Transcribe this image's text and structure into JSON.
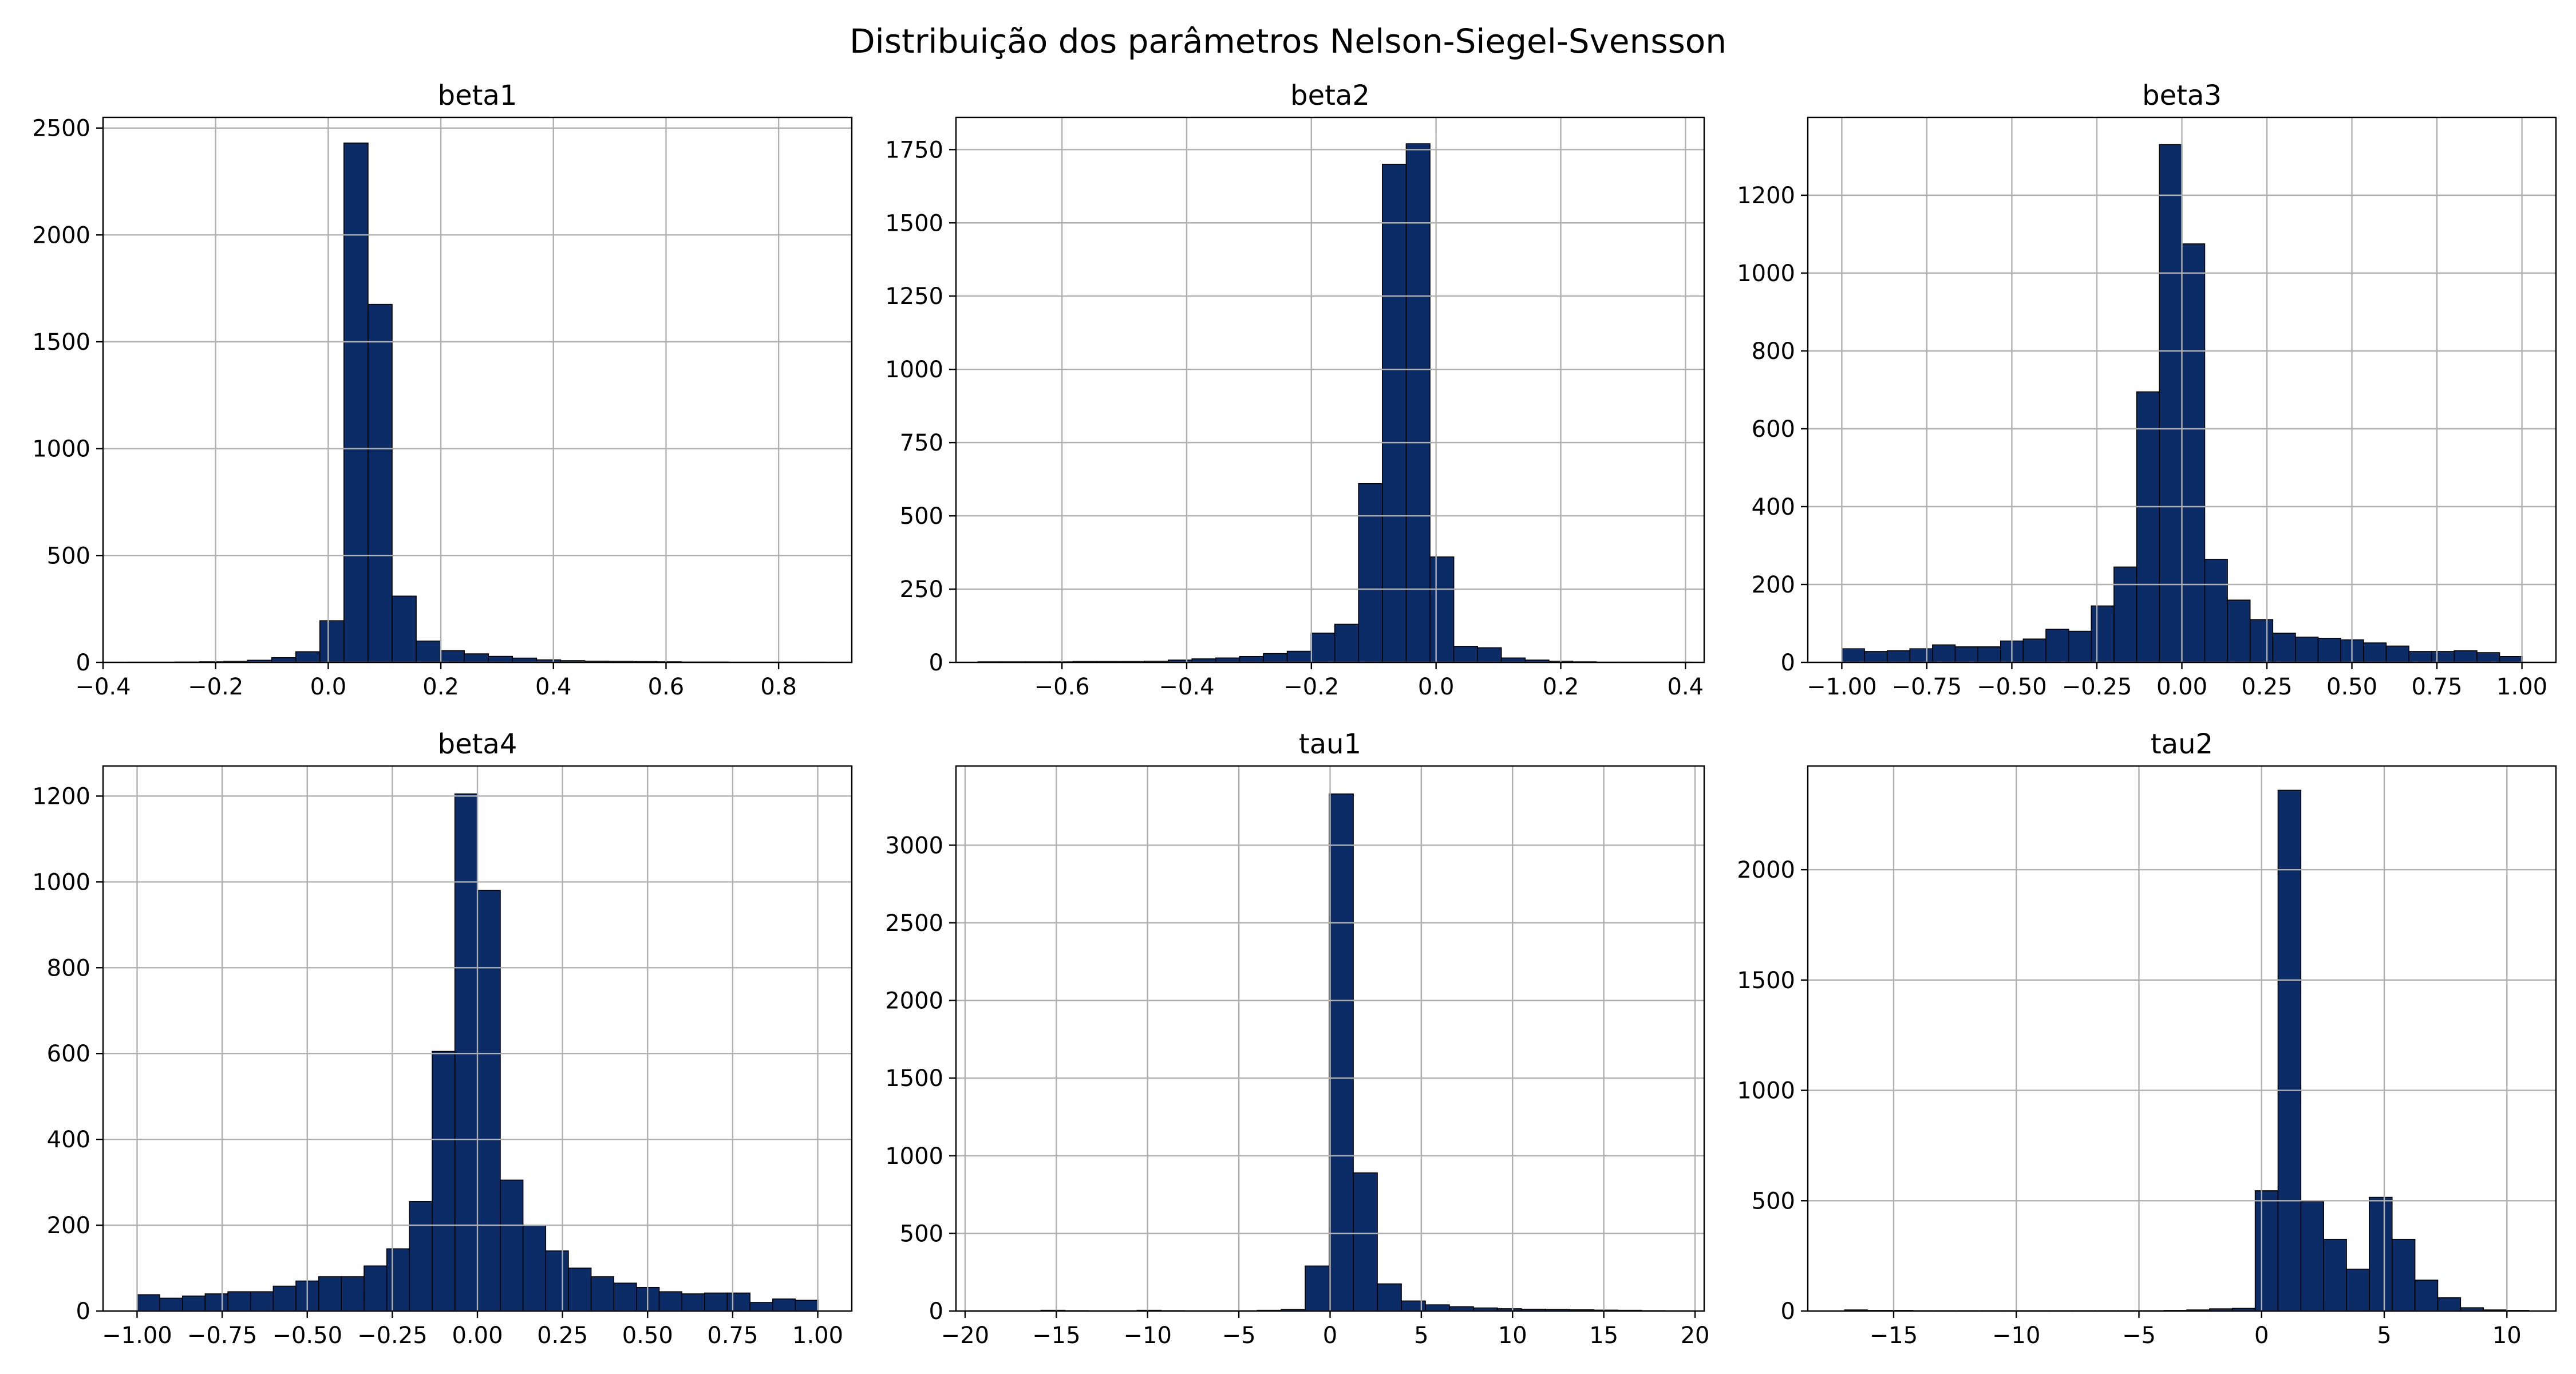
{
  "figure": {
    "title": "Distribuição dos parâmetros Nelson-Siegel-Svensson"
  },
  "colors": {
    "bar": "#0b2c66",
    "edge": "#000000",
    "grid": "#b0b0b0"
  },
  "chart_data": [
    {
      "type": "bar",
      "title": "beta1",
      "xlim": [
        -0.4,
        0.93
      ],
      "ylim": [
        0,
        2550
      ],
      "xticks": [
        -0.4,
        -0.2,
        0.0,
        0.2,
        0.4,
        0.6,
        0.8
      ],
      "xtick_labels": [
        "−0.4",
        "−0.2",
        "0.0",
        "0.2",
        "0.4",
        "0.6",
        "0.8"
      ],
      "yticks": [
        0,
        500,
        1000,
        1500,
        2000,
        2500
      ],
      "ytick_labels": [
        "0",
        "500",
        "1000",
        "1500",
        "2000",
        "2500"
      ],
      "bins": {
        "start": -0.357,
        "width": 0.04277
      },
      "values": [
        1,
        1,
        2,
        3,
        5,
        10,
        22,
        50,
        195,
        2430,
        1675,
        310,
        100,
        55,
        40,
        28,
        20,
        12,
        8,
        6,
        5,
        4,
        3,
        2,
        2,
        1,
        1,
        1,
        1,
        0
      ]
    },
    {
      "type": "bar",
      "title": "beta2",
      "xlim": [
        -0.77,
        0.43
      ],
      "ylim": [
        0,
        1860
      ],
      "xticks": [
        -0.6,
        -0.4,
        -0.2,
        0.0,
        0.2,
        0.4
      ],
      "xtick_labels": [
        "−0.6",
        "−0.4",
        "−0.2",
        "0.0",
        "0.2",
        "0.4"
      ],
      "yticks": [
        0,
        250,
        500,
        750,
        1000,
        1250,
        1500,
        1750
      ],
      "ytick_labels": [
        "0",
        "250",
        "500",
        "750",
        "1000",
        "1250",
        "1500",
        "1750"
      ],
      "bins": {
        "start": -0.735,
        "width": 0.03817
      },
      "values": [
        2,
        2,
        2,
        2,
        3,
        3,
        3,
        4,
        8,
        12,
        15,
        20,
        30,
        38,
        100,
        130,
        610,
        1700,
        1770,
        360,
        55,
        50,
        15,
        8,
        4,
        2,
        1,
        1,
        1,
        1
      ]
    },
    {
      "type": "bar",
      "title": "beta3",
      "xlim": [
        -1.1,
        1.1
      ],
      "ylim": [
        0,
        1400
      ],
      "xticks": [
        -1.0,
        -0.75,
        -0.5,
        -0.25,
        0.0,
        0.25,
        0.5,
        0.75,
        1.0
      ],
      "xtick_labels": [
        "−1.00",
        "−0.75",
        "−0.50",
        "−0.25",
        "0.00",
        "0.25",
        "0.50",
        "0.75",
        "1.00"
      ],
      "yticks": [
        0,
        200,
        400,
        600,
        800,
        1000,
        1200
      ],
      "ytick_labels": [
        "0",
        "200",
        "400",
        "600",
        "800",
        "1000",
        "1200"
      ],
      "bins": {
        "start": -1.0,
        "width": 0.0667
      },
      "values": [
        35,
        28,
        30,
        35,
        45,
        40,
        40,
        55,
        60,
        85,
        80,
        145,
        245,
        695,
        1330,
        1075,
        265,
        160,
        110,
        75,
        65,
        62,
        58,
        50,
        42,
        28,
        28,
        30,
        25,
        15
      ]
    },
    {
      "type": "bar",
      "title": "beta4",
      "xlim": [
        -1.1,
        1.1
      ],
      "ylim": [
        0,
        1270
      ],
      "xticks": [
        -1.0,
        -0.75,
        -0.5,
        -0.25,
        0.0,
        0.25,
        0.5,
        0.75,
        1.0
      ],
      "xtick_labels": [
        "−1.00",
        "−0.75",
        "−0.50",
        "−0.25",
        "0.00",
        "0.25",
        "0.50",
        "0.75",
        "1.00"
      ],
      "yticks": [
        0,
        200,
        400,
        600,
        800,
        1000,
        1200
      ],
      "ytick_labels": [
        "0",
        "200",
        "400",
        "600",
        "800",
        "1000",
        "1200"
      ],
      "bins": {
        "start": -1.0,
        "width": 0.0667
      },
      "values": [
        38,
        30,
        35,
        40,
        45,
        45,
        58,
        70,
        80,
        80,
        105,
        145,
        255,
        605,
        1205,
        980,
        305,
        200,
        140,
        100,
        80,
        65,
        55,
        45,
        40,
        42,
        42,
        20,
        28,
        25
      ]
    },
    {
      "type": "bar",
      "title": "tau1",
      "xlim": [
        -20.5,
        20.5
      ],
      "ylim": [
        0,
        3510
      ],
      "xticks": [
        -20,
        -15,
        -10,
        -5,
        0,
        5,
        10,
        15,
        20
      ],
      "xtick_labels": [
        "−20",
        "−15",
        "−10",
        "−5",
        "0",
        "5",
        "10",
        "15",
        "20"
      ],
      "yticks": [
        0,
        500,
        1000,
        1500,
        2000,
        2500,
        3000
      ],
      "ytick_labels": [
        "0",
        "500",
        "1000",
        "1500",
        "2000",
        "2500",
        "3000"
      ],
      "bins": {
        "start": -19.8,
        "width": 1.317
      },
      "values": [
        2,
        2,
        2,
        5,
        3,
        2,
        2,
        5,
        3,
        2,
        2,
        2,
        5,
        10,
        290,
        3330,
        890,
        175,
        65,
        40,
        28,
        20,
        15,
        12,
        10,
        8,
        6,
        5,
        3,
        2
      ]
    },
    {
      "type": "bar",
      "title": "tau2",
      "xlim": [
        -18.5,
        12.0
      ],
      "ylim": [
        0,
        2470
      ],
      "xticks": [
        -15,
        -10,
        -5,
        0,
        5,
        10
      ],
      "xtick_labels": [
        "−15",
        "−10",
        "−5",
        "0",
        "5",
        "10"
      ],
      "yticks": [
        0,
        500,
        1000,
        1500,
        2000
      ],
      "ytick_labels": [
        "0",
        "500",
        "1000",
        "1500",
        "2000"
      ],
      "bins": {
        "start": -17.0,
        "width": 0.93
      },
      "values": [
        5,
        3,
        3,
        2,
        2,
        2,
        2,
        2,
        2,
        2,
        2,
        2,
        2,
        2,
        3,
        5,
        10,
        12,
        545,
        2360,
        495,
        325,
        190,
        515,
        325,
        140,
        60,
        15,
        5,
        3
      ]
    }
  ]
}
